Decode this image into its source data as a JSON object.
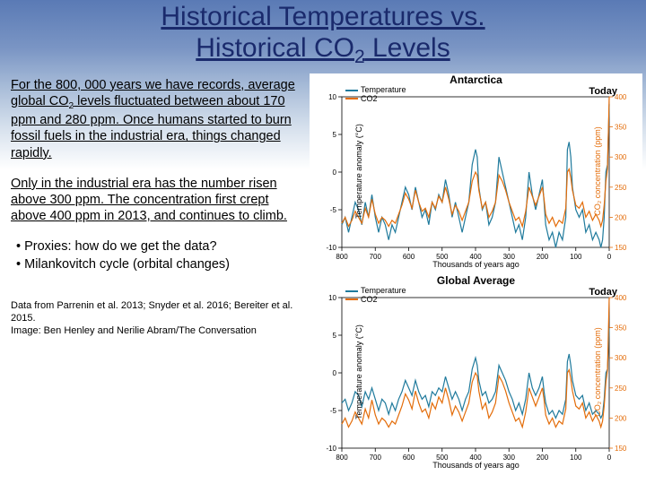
{
  "title_line1": "Historical Temperatures vs.",
  "title_line2_pre": "Historical CO",
  "title_line2_sub": "2",
  "title_line2_post": " Levels",
  "para1_pre": "For the 800, 000 years we have records, average global CO",
  "para1_sub": "2",
  "para1_post": " levels fluctuated between about 170 ppm and 280 ppm. Once humans started to burn fossil fuels in the industrial era, things changed rapidly.",
  "para2": "Only in the industrial era has the number risen above 300 ppm. The concentration first crept above 400 ppm in 2013, and continues to climb.",
  "bullet1": "Proxies: how do we get the data?",
  "bullet2": "Milankovitch cycle (orbital changes)",
  "credits": "Data from Parrenin et al. 2013; Snyder et al. 2016; Bereiter et al. 2015.\nImage: Ben Henley and Nerilie Abram/The Conversation",
  "chart1": {
    "title": "Antarctica",
    "today": "Today",
    "legend_temp": "Temperature",
    "legend_co2": "CO2",
    "ylabel_left": "Temperature anomaly (°C)",
    "ylabel_right": "CO₂ concentration (ppm)",
    "xlabel": "Thousands of years ago",
    "temp_color": "#1f7a9c",
    "co2_color": "#e36c09",
    "x_ticks": [
      "800",
      "700",
      "600",
      "500",
      "400",
      "300",
      "200",
      "100",
      "0"
    ],
    "left_ticks": [
      "10",
      "5",
      "0",
      "-5",
      "-10"
    ],
    "right_ticks": [
      "400",
      "350",
      "300",
      "250",
      "200",
      "150"
    ],
    "left_range": [
      -10,
      10
    ],
    "right_range": [
      150,
      400
    ],
    "x_range": [
      800,
      0
    ],
    "temp_series": [
      [
        800,
        -7
      ],
      [
        790,
        -6
      ],
      [
        780,
        -8
      ],
      [
        770,
        -6
      ],
      [
        760,
        -4
      ],
      [
        750,
        -5
      ],
      [
        740,
        -7
      ],
      [
        730,
        -4
      ],
      [
        720,
        -6
      ],
      [
        710,
        -3
      ],
      [
        700,
        -6
      ],
      [
        690,
        -8
      ],
      [
        680,
        -6
      ],
      [
        670,
        -7
      ],
      [
        660,
        -9
      ],
      [
        650,
        -7
      ],
      [
        640,
        -8
      ],
      [
        630,
        -6
      ],
      [
        620,
        -4
      ],
      [
        610,
        -2
      ],
      [
        600,
        -3
      ],
      [
        590,
        -5
      ],
      [
        580,
        -2
      ],
      [
        570,
        -4
      ],
      [
        560,
        -6
      ],
      [
        550,
        -5
      ],
      [
        540,
        -7
      ],
      [
        530,
        -4
      ],
      [
        520,
        -5
      ],
      [
        510,
        -3
      ],
      [
        500,
        -4
      ],
      [
        490,
        -1
      ],
      [
        480,
        -3
      ],
      [
        470,
        -6
      ],
      [
        460,
        -4
      ],
      [
        450,
        -6
      ],
      [
        440,
        -8
      ],
      [
        430,
        -6
      ],
      [
        420,
        -4
      ],
      [
        410,
        1
      ],
      [
        400,
        3
      ],
      [
        395,
        2
      ],
      [
        390,
        -2
      ],
      [
        380,
        -5
      ],
      [
        370,
        -4
      ],
      [
        360,
        -7
      ],
      [
        350,
        -6
      ],
      [
        340,
        -4
      ],
      [
        330,
        2
      ],
      [
        320,
        0
      ],
      [
        310,
        -2
      ],
      [
        300,
        -4
      ],
      [
        290,
        -6
      ],
      [
        280,
        -8
      ],
      [
        270,
        -7
      ],
      [
        260,
        -9
      ],
      [
        250,
        -6
      ],
      [
        240,
        0
      ],
      [
        230,
        -3
      ],
      [
        220,
        -5
      ],
      [
        210,
        -3
      ],
      [
        200,
        -1
      ],
      [
        195,
        -4
      ],
      [
        190,
        -7
      ],
      [
        180,
        -9
      ],
      [
        170,
        -8
      ],
      [
        160,
        -10
      ],
      [
        150,
        -8
      ],
      [
        140,
        -9
      ],
      [
        130,
        -6
      ],
      [
        125,
        3
      ],
      [
        120,
        4
      ],
      [
        115,
        2
      ],
      [
        110,
        -2
      ],
      [
        100,
        -5
      ],
      [
        90,
        -6
      ],
      [
        80,
        -5
      ],
      [
        70,
        -8
      ],
      [
        60,
        -7
      ],
      [
        50,
        -9
      ],
      [
        40,
        -8
      ],
      [
        30,
        -9
      ],
      [
        25,
        -10
      ],
      [
        20,
        -9
      ],
      [
        15,
        -6
      ],
      [
        10,
        0
      ],
      [
        5,
        1
      ],
      [
        0,
        9
      ]
    ],
    "co2_series": [
      [
        800,
        190
      ],
      [
        790,
        200
      ],
      [
        780,
        185
      ],
      [
        770,
        195
      ],
      [
        760,
        210
      ],
      [
        750,
        200
      ],
      [
        740,
        190
      ],
      [
        730,
        215
      ],
      [
        720,
        200
      ],
      [
        710,
        230
      ],
      [
        700,
        205
      ],
      [
        690,
        190
      ],
      [
        680,
        200
      ],
      [
        670,
        195
      ],
      [
        660,
        185
      ],
      [
        650,
        195
      ],
      [
        640,
        190
      ],
      [
        630,
        205
      ],
      [
        620,
        220
      ],
      [
        610,
        240
      ],
      [
        600,
        230
      ],
      [
        590,
        215
      ],
      [
        580,
        245
      ],
      [
        570,
        225
      ],
      [
        560,
        210
      ],
      [
        550,
        215
      ],
      [
        540,
        200
      ],
      [
        530,
        225
      ],
      [
        520,
        215
      ],
      [
        510,
        235
      ],
      [
        500,
        225
      ],
      [
        490,
        250
      ],
      [
        480,
        230
      ],
      [
        470,
        205
      ],
      [
        460,
        220
      ],
      [
        450,
        210
      ],
      [
        440,
        195
      ],
      [
        430,
        210
      ],
      [
        420,
        225
      ],
      [
        410,
        260
      ],
      [
        400,
        275
      ],
      [
        395,
        270
      ],
      [
        390,
        245
      ],
      [
        380,
        215
      ],
      [
        370,
        225
      ],
      [
        360,
        200
      ],
      [
        350,
        210
      ],
      [
        340,
        225
      ],
      [
        330,
        270
      ],
      [
        320,
        260
      ],
      [
        310,
        245
      ],
      [
        300,
        225
      ],
      [
        290,
        210
      ],
      [
        280,
        195
      ],
      [
        270,
        200
      ],
      [
        260,
        185
      ],
      [
        250,
        210
      ],
      [
        240,
        250
      ],
      [
        230,
        235
      ],
      [
        220,
        220
      ],
      [
        210,
        235
      ],
      [
        200,
        250
      ],
      [
        195,
        230
      ],
      [
        190,
        205
      ],
      [
        180,
        190
      ],
      [
        170,
        200
      ],
      [
        160,
        185
      ],
      [
        150,
        195
      ],
      [
        140,
        190
      ],
      [
        130,
        215
      ],
      [
        125,
        275
      ],
      [
        120,
        280
      ],
      [
        115,
        265
      ],
      [
        110,
        245
      ],
      [
        100,
        220
      ],
      [
        90,
        215
      ],
      [
        80,
        225
      ],
      [
        70,
        200
      ],
      [
        60,
        210
      ],
      [
        50,
        195
      ],
      [
        40,
        205
      ],
      [
        30,
        195
      ],
      [
        25,
        185
      ],
      [
        20,
        195
      ],
      [
        15,
        220
      ],
      [
        10,
        260
      ],
      [
        5,
        280
      ],
      [
        0,
        400
      ]
    ]
  },
  "chart2": {
    "title": "Global Average",
    "today": "Today",
    "legend_temp": "Temperature",
    "legend_co2": "CO2",
    "ylabel_left": "Temperature anomaly (°C)",
    "ylabel_right": "CO₂ concentration (ppm)",
    "xlabel": "Thousands of years ago",
    "temp_color": "#1f7a9c",
    "co2_color": "#e36c09",
    "x_ticks": [
      "800",
      "700",
      "600",
      "500",
      "400",
      "300",
      "200",
      "100",
      "0"
    ],
    "left_ticks": [
      "10",
      "5",
      "0",
      "-5",
      "-10"
    ],
    "right_ticks": [
      "400",
      "350",
      "300",
      "250",
      "200",
      "150"
    ],
    "left_range": [
      -10,
      10
    ],
    "right_range": [
      150,
      400
    ],
    "x_range": [
      800,
      0
    ],
    "temp_series": [
      [
        800,
        -4
      ],
      [
        790,
        -3.5
      ],
      [
        780,
        -5
      ],
      [
        770,
        -4
      ],
      [
        760,
        -2.5
      ],
      [
        750,
        -3
      ],
      [
        740,
        -4.5
      ],
      [
        730,
        -2.5
      ],
      [
        720,
        -3.5
      ],
      [
        710,
        -2
      ],
      [
        700,
        -3.5
      ],
      [
        690,
        -5
      ],
      [
        680,
        -3.5
      ],
      [
        670,
        -4
      ],
      [
        660,
        -5.5
      ],
      [
        650,
        -4
      ],
      [
        640,
        -5
      ],
      [
        630,
        -3.5
      ],
      [
        620,
        -2.5
      ],
      [
        610,
        -1
      ],
      [
        600,
        -2
      ],
      [
        590,
        -3
      ],
      [
        580,
        -1
      ],
      [
        570,
        -2.5
      ],
      [
        560,
        -3.5
      ],
      [
        550,
        -3
      ],
      [
        540,
        -4.5
      ],
      [
        530,
        -2.5
      ],
      [
        520,
        -3
      ],
      [
        510,
        -2
      ],
      [
        500,
        -2.5
      ],
      [
        490,
        -0.5
      ],
      [
        480,
        -2
      ],
      [
        470,
        -3.5
      ],
      [
        460,
        -2.5
      ],
      [
        450,
        -3.5
      ],
      [
        440,
        -5
      ],
      [
        430,
        -3.5
      ],
      [
        420,
        -2.5
      ],
      [
        410,
        0.5
      ],
      [
        400,
        2
      ],
      [
        395,
        1
      ],
      [
        390,
        -1
      ],
      [
        380,
        -3
      ],
      [
        370,
        -2.5
      ],
      [
        360,
        -4
      ],
      [
        350,
        -3.5
      ],
      [
        340,
        -2.5
      ],
      [
        330,
        1
      ],
      [
        320,
        0
      ],
      [
        310,
        -1
      ],
      [
        300,
        -2.5
      ],
      [
        290,
        -3.5
      ],
      [
        280,
        -5
      ],
      [
        270,
        -4
      ],
      [
        260,
        -5.5
      ],
      [
        250,
        -3.5
      ],
      [
        240,
        0
      ],
      [
        230,
        -2
      ],
      [
        220,
        -3
      ],
      [
        210,
        -2
      ],
      [
        200,
        -0.5
      ],
      [
        195,
        -2.5
      ],
      [
        190,
        -4
      ],
      [
        180,
        -5.5
      ],
      [
        170,
        -5
      ],
      [
        160,
        -6
      ],
      [
        150,
        -5
      ],
      [
        140,
        -5.5
      ],
      [
        130,
        -3.5
      ],
      [
        125,
        1.5
      ],
      [
        120,
        2.5
      ],
      [
        115,
        1
      ],
      [
        110,
        -1
      ],
      [
        100,
        -3
      ],
      [
        90,
        -3.5
      ],
      [
        80,
        -3
      ],
      [
        70,
        -5
      ],
      [
        60,
        -4
      ],
      [
        50,
        -5.5
      ],
      [
        40,
        -5
      ],
      [
        30,
        -5.5
      ],
      [
        25,
        -6
      ],
      [
        20,
        -5.5
      ],
      [
        15,
        -3.5
      ],
      [
        10,
        0
      ],
      [
        5,
        0.5
      ],
      [
        0,
        6
      ]
    ],
    "co2_series": [
      [
        800,
        190
      ],
      [
        790,
        200
      ],
      [
        780,
        185
      ],
      [
        770,
        195
      ],
      [
        760,
        210
      ],
      [
        750,
        200
      ],
      [
        740,
        190
      ],
      [
        730,
        215
      ],
      [
        720,
        200
      ],
      [
        710,
        230
      ],
      [
        700,
        205
      ],
      [
        690,
        190
      ],
      [
        680,
        200
      ],
      [
        670,
        195
      ],
      [
        660,
        185
      ],
      [
        650,
        195
      ],
      [
        640,
        190
      ],
      [
        630,
        205
      ],
      [
        620,
        220
      ],
      [
        610,
        240
      ],
      [
        600,
        230
      ],
      [
        590,
        215
      ],
      [
        580,
        245
      ],
      [
        570,
        225
      ],
      [
        560,
        210
      ],
      [
        550,
        215
      ],
      [
        540,
        200
      ],
      [
        530,
        225
      ],
      [
        520,
        215
      ],
      [
        510,
        235
      ],
      [
        500,
        225
      ],
      [
        490,
        250
      ],
      [
        480,
        230
      ],
      [
        470,
        205
      ],
      [
        460,
        220
      ],
      [
        450,
        210
      ],
      [
        440,
        195
      ],
      [
        430,
        210
      ],
      [
        420,
        225
      ],
      [
        410,
        260
      ],
      [
        400,
        275
      ],
      [
        395,
        270
      ],
      [
        390,
        245
      ],
      [
        380,
        215
      ],
      [
        370,
        225
      ],
      [
        360,
        200
      ],
      [
        350,
        210
      ],
      [
        340,
        225
      ],
      [
        330,
        270
      ],
      [
        320,
        260
      ],
      [
        310,
        245
      ],
      [
        300,
        225
      ],
      [
        290,
        210
      ],
      [
        280,
        195
      ],
      [
        270,
        200
      ],
      [
        260,
        185
      ],
      [
        250,
        210
      ],
      [
        240,
        250
      ],
      [
        230,
        235
      ],
      [
        220,
        220
      ],
      [
        210,
        235
      ],
      [
        200,
        250
      ],
      [
        195,
        230
      ],
      [
        190,
        205
      ],
      [
        180,
        190
      ],
      [
        170,
        200
      ],
      [
        160,
        185
      ],
      [
        150,
        195
      ],
      [
        140,
        190
      ],
      [
        130,
        215
      ],
      [
        125,
        275
      ],
      [
        120,
        280
      ],
      [
        115,
        265
      ],
      [
        110,
        245
      ],
      [
        100,
        220
      ],
      [
        90,
        215
      ],
      [
        80,
        225
      ],
      [
        70,
        200
      ],
      [
        60,
        210
      ],
      [
        50,
        195
      ],
      [
        40,
        205
      ],
      [
        30,
        195
      ],
      [
        25,
        185
      ],
      [
        20,
        195
      ],
      [
        15,
        220
      ],
      [
        10,
        260
      ],
      [
        5,
        280
      ],
      [
        0,
        400
      ]
    ]
  }
}
